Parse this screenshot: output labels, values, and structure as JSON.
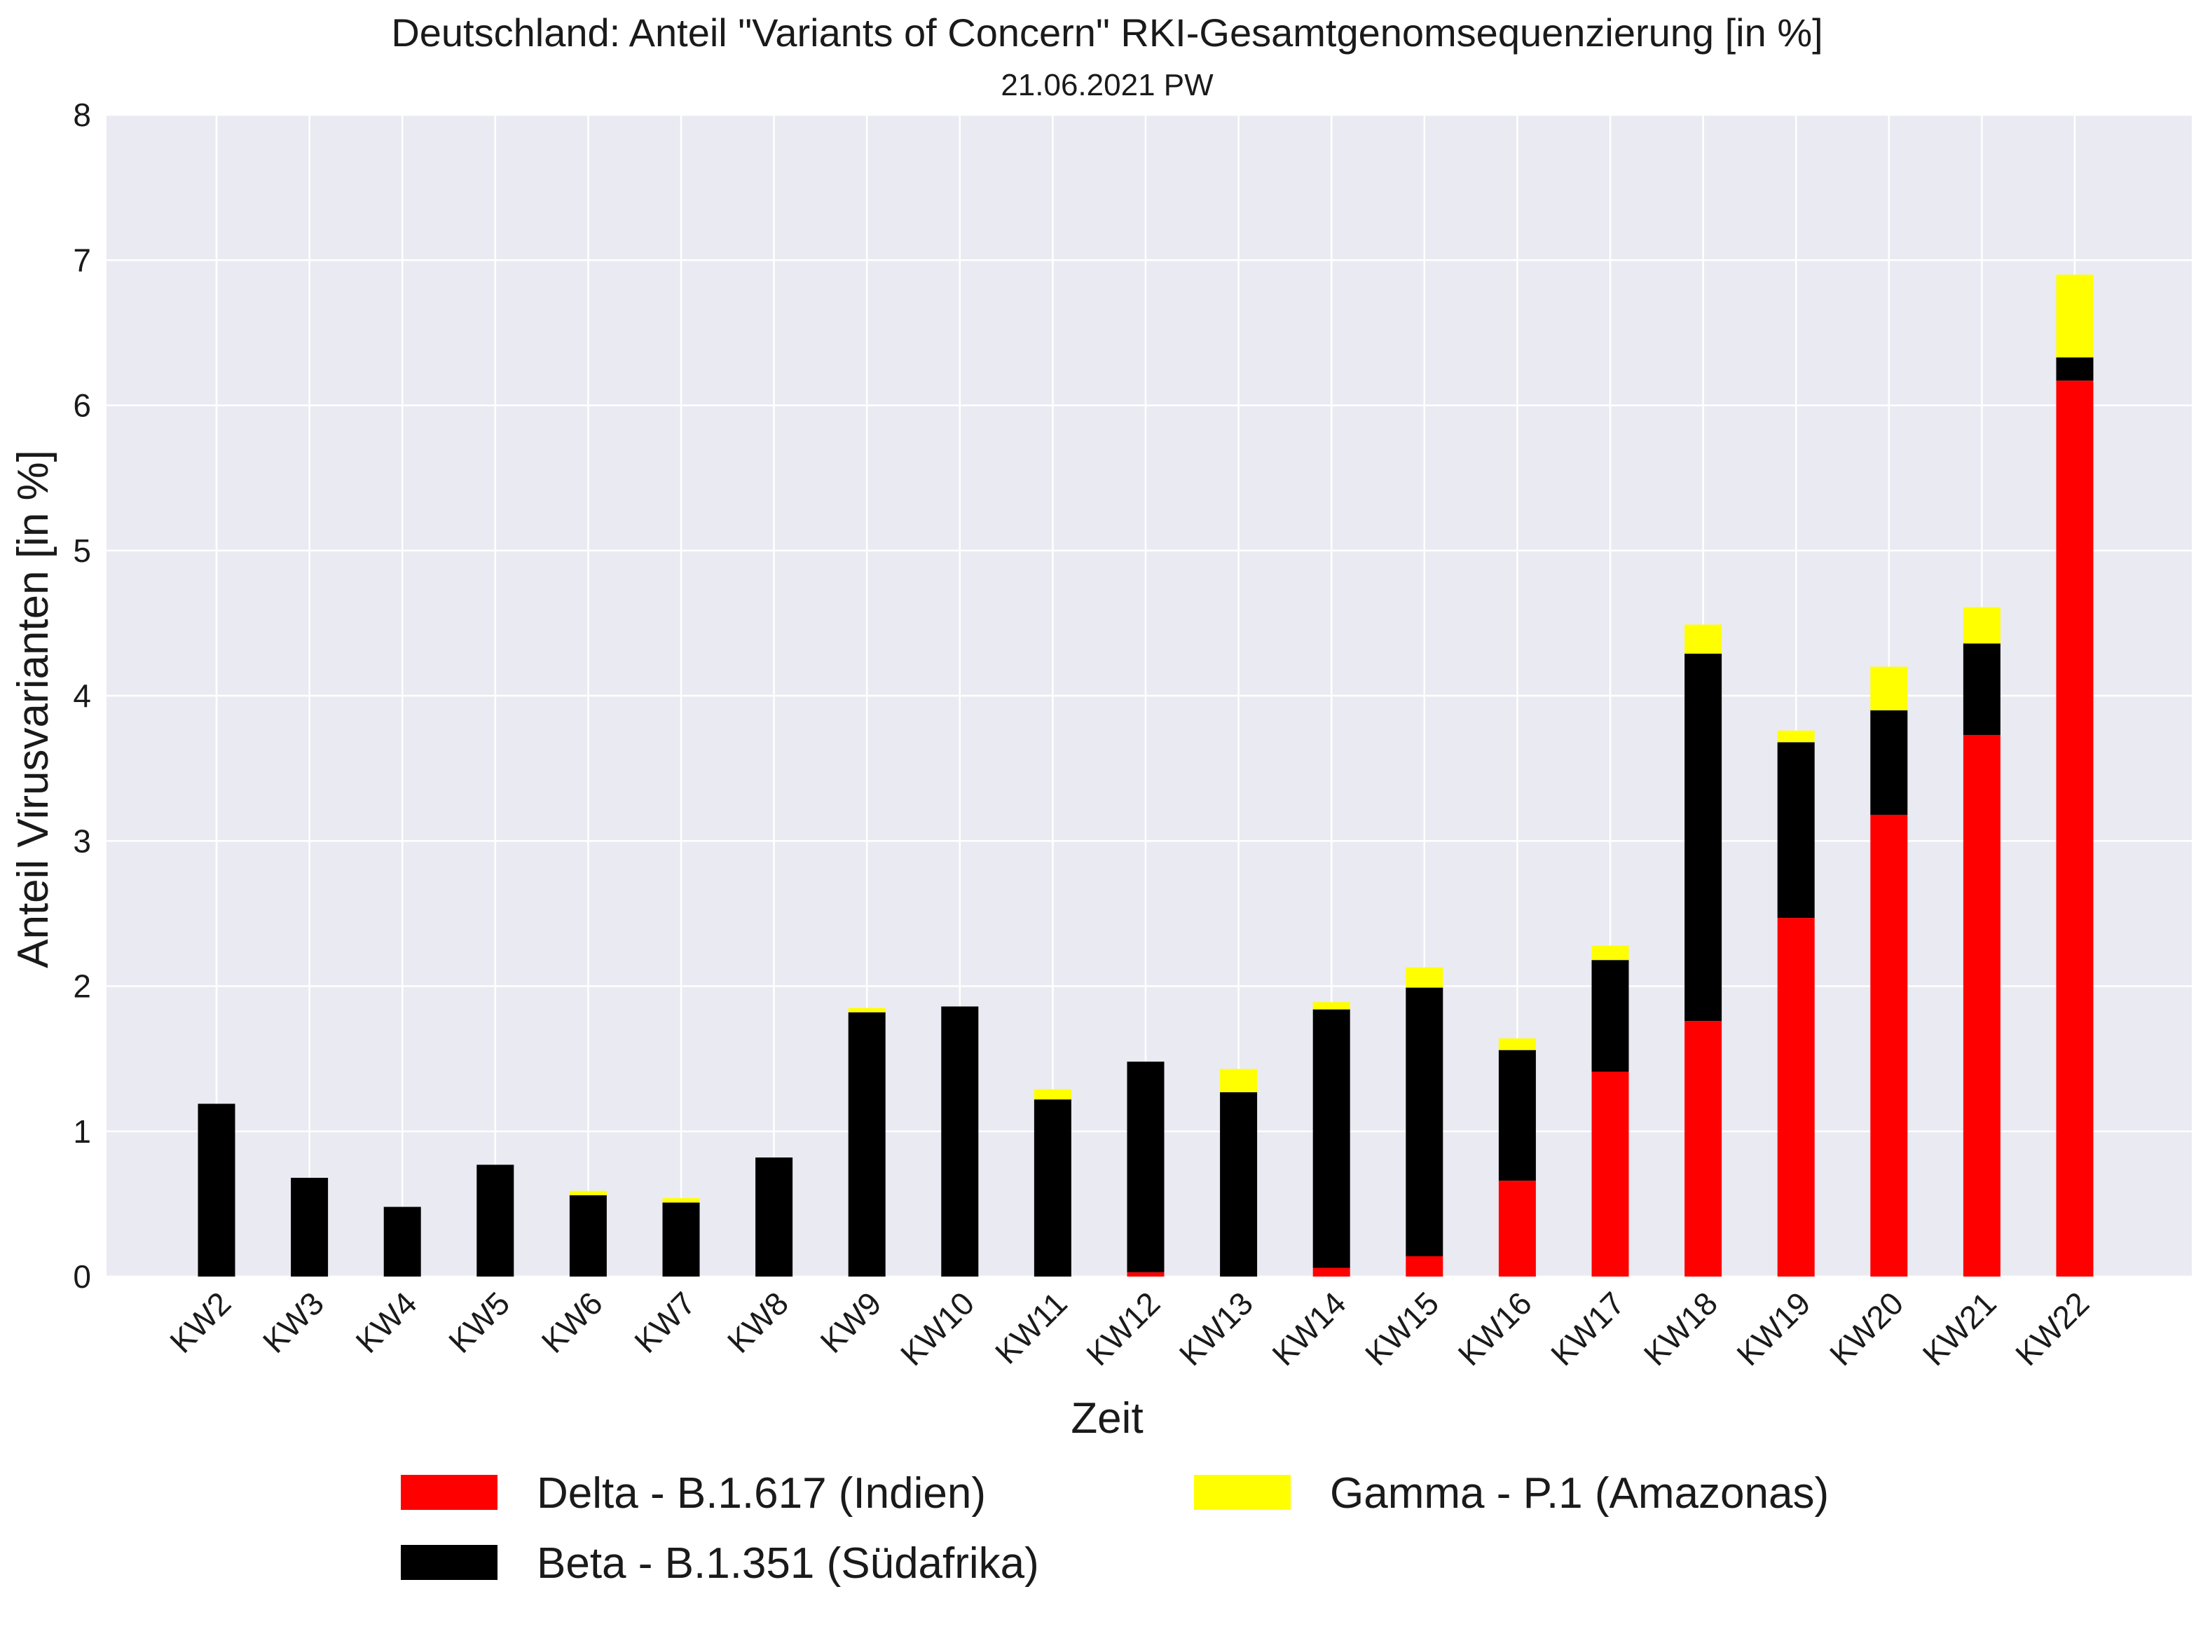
{
  "chart_data": {
    "type": "bar",
    "stacked": true,
    "title": "Deutschland: Anteil \"Variants of Concern\" RKI-Gesamtgenomsequenzierung [in %]",
    "subtitle": "21.06.2021 PW",
    "xlabel": "Zeit",
    "ylabel": "Anteil Virusvarianten [in %]",
    "ylim": [
      0,
      8
    ],
    "yticks": [
      "0",
      "1",
      "2",
      "3",
      "4",
      "5",
      "6",
      "7",
      "8"
    ],
    "grid": true,
    "legend_position": "bottom-center",
    "background": "#eaeaf2",
    "categories": [
      "KW2",
      "KW3",
      "KW4",
      "KW5",
      "KW6",
      "KW7",
      "KW8",
      "KW9",
      "KW10",
      "KW11",
      "KW12",
      "KW13",
      "KW14",
      "KW15",
      "KW16",
      "KW17",
      "KW18",
      "KW19",
      "KW20",
      "KW21",
      "KW22"
    ],
    "series": [
      {
        "name": "Delta - B.1.617 (Indien)",
        "color": "#ff0000",
        "values": [
          0,
          0,
          0,
          0,
          0,
          0,
          0,
          0,
          0,
          0,
          0.03,
          0,
          0.06,
          0.14,
          0.66,
          1.41,
          1.76,
          2.47,
          3.18,
          3.73,
          6.17
        ]
      },
      {
        "name": "Beta - B.1.351 (Südafrika)",
        "color": "#000000",
        "values": [
          1.19,
          0.68,
          0.48,
          0.77,
          0.56,
          0.51,
          0.82,
          1.82,
          1.86,
          1.22,
          1.45,
          1.27,
          1.78,
          1.85,
          0.9,
          0.77,
          2.53,
          1.21,
          0.72,
          0.63,
          0.16
        ]
      },
      {
        "name": "Gamma - P.1 (Amazonas)",
        "color": "#ffff00",
        "values": [
          0,
          0,
          0,
          0,
          0.03,
          0.03,
          0,
          0.03,
          0,
          0.07,
          0,
          0.16,
          0.05,
          0.14,
          0.08,
          0.1,
          0.2,
          0.08,
          0.3,
          0.25,
          0.57
        ]
      }
    ]
  }
}
